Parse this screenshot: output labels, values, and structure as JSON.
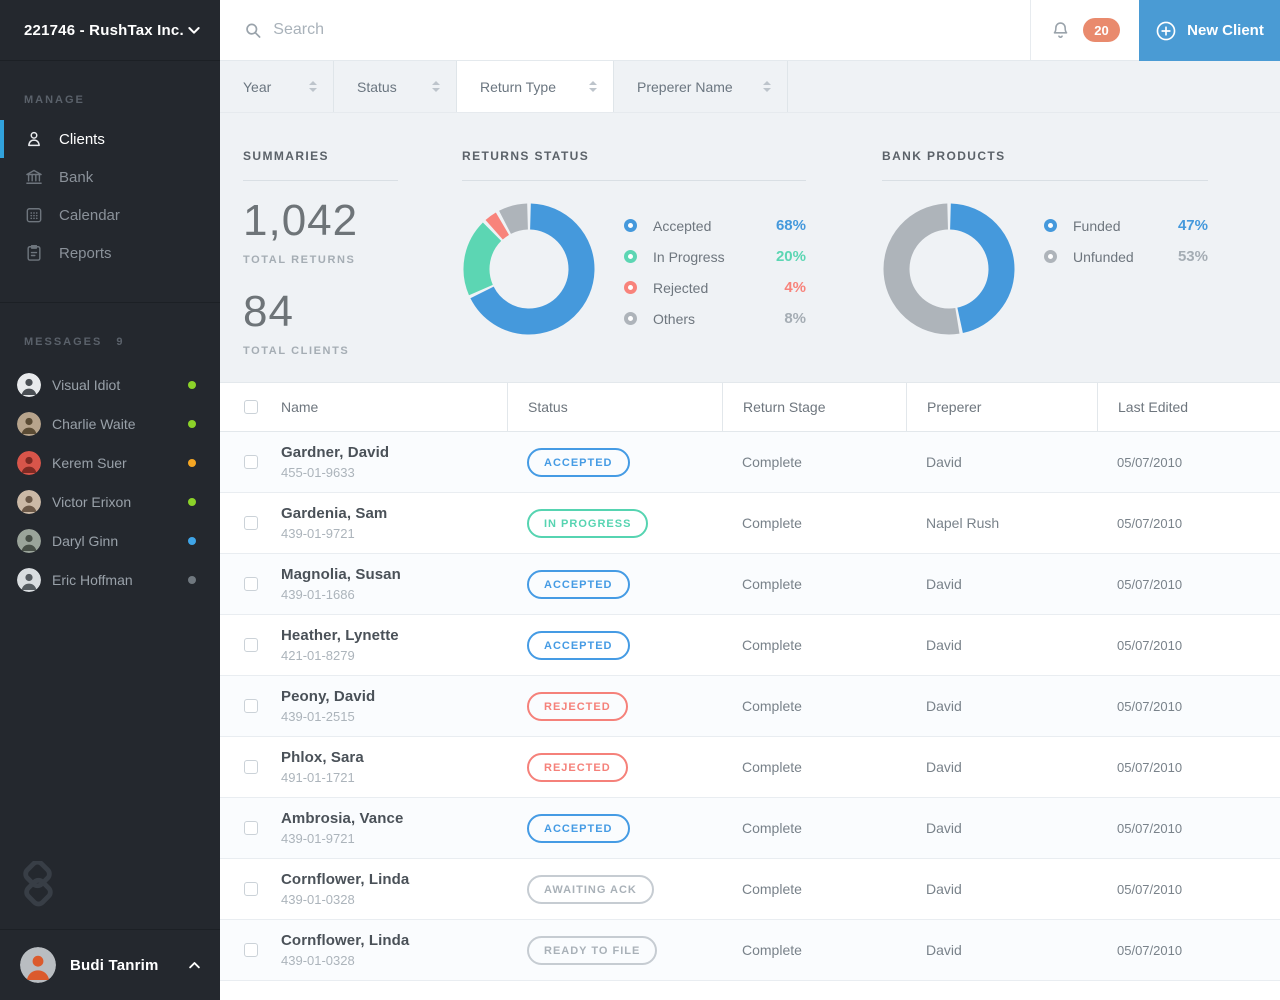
{
  "colors": {
    "accent_blue": "#4599DC",
    "teal": "#5CD6B3",
    "red": "#F8837B",
    "chart_gray": "#AEB4BA",
    "badge_salmon": "#E98A6D",
    "active_indicator": "#31A2DC",
    "new_client_button": "#4A9BD4"
  },
  "sidebar": {
    "org": "221746 - RushTax Inc.",
    "manage_label": "MANAGE",
    "nav": [
      {
        "label": "Clients",
        "icon": "clients-icon",
        "active": true
      },
      {
        "label": "Bank",
        "icon": "bank-icon",
        "active": false
      },
      {
        "label": "Calendar",
        "icon": "calendar-icon",
        "active": false
      },
      {
        "label": "Reports",
        "icon": "reports-icon",
        "active": false
      }
    ],
    "messages_label": "MESSAGES",
    "messages_count": "9",
    "messages": [
      {
        "name": "Visual Idiot",
        "status_color": "#8CD229"
      },
      {
        "name": "Charlie Waite",
        "status_color": "#8CD229"
      },
      {
        "name": "Kerem Suer",
        "status_color": "#F5A623"
      },
      {
        "name": "Victor Erixon",
        "status_color": "#8CD229"
      },
      {
        "name": "Daryl Ginn",
        "status_color": "#3FA5E8"
      },
      {
        "name": "Eric Hoffman",
        "status_color": "#70787F"
      }
    ],
    "user": {
      "name": "Budi Tanrim"
    }
  },
  "topbar": {
    "search_placeholder": "Search",
    "notification_count": "20",
    "new_client_label": "New Client"
  },
  "filters": [
    {
      "label": "Year",
      "active": false
    },
    {
      "label": "Status",
      "active": false
    },
    {
      "label": "Return Type",
      "active": true
    },
    {
      "label": "Preperer Name",
      "active": false
    }
  ],
  "summaries": {
    "title": "SUMMARIES",
    "total_returns_value": "1,042",
    "total_returns_label": "TOTAL RETURNS",
    "total_clients_value": "84",
    "total_clients_label": "TOTAL CLIENTS"
  },
  "chart_data": [
    {
      "type": "pie",
      "donut": true,
      "title": "RETURNS STATUS",
      "labels": [
        "Accepted",
        "In Progress",
        "Rejected",
        "Others"
      ],
      "values": [
        68,
        20,
        4,
        8
      ],
      "display_values": [
        "68%",
        "20%",
        "4%",
        "8%"
      ],
      "unit": "%",
      "colors": [
        "#4599DC",
        "#5CD6B3",
        "#F8837B",
        "#AEB4BA"
      ],
      "value_text_colors": [
        "#4599DC",
        "#5CD6B3",
        "#F8837B",
        "#A5ADB4"
      ],
      "legend_position": "right",
      "start_angle": "top",
      "direction": "clockwise"
    },
    {
      "type": "pie",
      "donut": true,
      "title": "BANK PRODUCTS",
      "labels": [
        "Funded",
        "Unfunded"
      ],
      "values": [
        47,
        53
      ],
      "display_values": [
        "47%",
        "53%"
      ],
      "unit": "%",
      "colors": [
        "#4599DC",
        "#AEB4BA"
      ],
      "value_text_colors": [
        "#4599DC",
        "#A5ADB4"
      ],
      "legend_position": "right",
      "start_angle": "top",
      "direction": "clockwise"
    }
  ],
  "table": {
    "columns": [
      "Name",
      "Status",
      "Return Stage",
      "Preperer",
      "Last Edited"
    ],
    "rows": [
      {
        "name": "Gardner, David",
        "ssn": "455-01-9633",
        "status": "ACCEPTED",
        "status_type": "blue",
        "stage": "Complete",
        "preperer": "David",
        "last_edited": "05/07/2010"
      },
      {
        "name": "Gardenia, Sam",
        "ssn": "439-01-9721",
        "status": "IN PROGRESS",
        "status_type": "teal",
        "stage": "Complete",
        "preperer": "Napel Rush",
        "last_edited": "05/07/2010"
      },
      {
        "name": "Magnolia, Susan",
        "ssn": "439-01-1686",
        "status": "ACCEPTED",
        "status_type": "blue",
        "stage": "Complete",
        "preperer": "David",
        "last_edited": "05/07/2010"
      },
      {
        "name": "Heather, Lynette",
        "ssn": "421-01-8279",
        "status": "ACCEPTED",
        "status_type": "blue",
        "stage": "Complete",
        "preperer": "David",
        "last_edited": "05/07/2010"
      },
      {
        "name": "Peony, David",
        "ssn": "439-01-2515",
        "status": "REJECTED",
        "status_type": "red",
        "stage": "Complete",
        "preperer": "David",
        "last_edited": "05/07/2010"
      },
      {
        "name": "Phlox, Sara",
        "ssn": "491-01-1721",
        "status": "REJECTED",
        "status_type": "red",
        "stage": "Complete",
        "preperer": "David",
        "last_edited": "05/07/2010"
      },
      {
        "name": "Ambrosia, Vance",
        "ssn": "439-01-9721",
        "status": "ACCEPTED",
        "status_type": "blue",
        "stage": "Complete",
        "preperer": "David",
        "last_edited": "05/07/2010"
      },
      {
        "name": "Cornflower, Linda",
        "ssn": "439-01-0328",
        "status": "AWAITING ACK",
        "status_type": "gray",
        "stage": "Complete",
        "preperer": "David",
        "last_edited": "05/07/2010"
      },
      {
        "name": "Cornflower, Linda",
        "ssn": "439-01-0328",
        "status": "READY TO FILE",
        "status_type": "gray",
        "stage": "Complete",
        "preperer": "David",
        "last_edited": "05/07/2010"
      }
    ]
  }
}
